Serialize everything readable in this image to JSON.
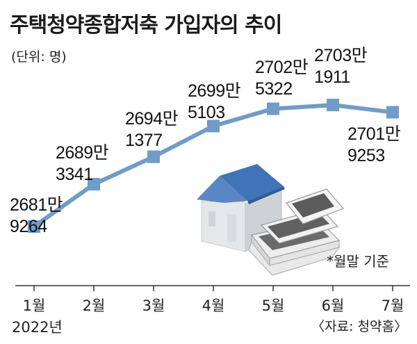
{
  "title": "주택청약종합저축 가입자의 추이",
  "unit": "(단위: 명)",
  "note": "*월말 기준",
  "source": "〈자료: 청약홈〉",
  "year_label": "2022년",
  "colors": {
    "line": "#6f9cc8",
    "marker": "#6f9cc8",
    "axis": "#333333",
    "roof": "#3f74b8",
    "wall": "#e2e4e6",
    "money": "#6a6a6a"
  },
  "icons": [
    "house-icon",
    "money-bundle-icon"
  ],
  "chart_data": {
    "type": "line",
    "title": "주택청약종합저축 가입자의 추이",
    "unit": "(단위: 명)",
    "categories": [
      "1월",
      "2월",
      "3월",
      "4월",
      "5월",
      "6월",
      "7월"
    ],
    "values": [
      26819264,
      26893341,
      26941377,
      26995103,
      27025322,
      27031911,
      27019253
    ],
    "labels": [
      [
        "2681만",
        "9264"
      ],
      [
        "2689만",
        "3341"
      ],
      [
        "2694만",
        "1377"
      ],
      [
        "2699만",
        "5103"
      ],
      [
        "2702만",
        "5322"
      ],
      [
        "2703만",
        "1911"
      ],
      [
        "2701만",
        "9253"
      ]
    ],
    "ylim": [
      26750000,
      27060000
    ],
    "grid": false,
    "legend": "none"
  }
}
